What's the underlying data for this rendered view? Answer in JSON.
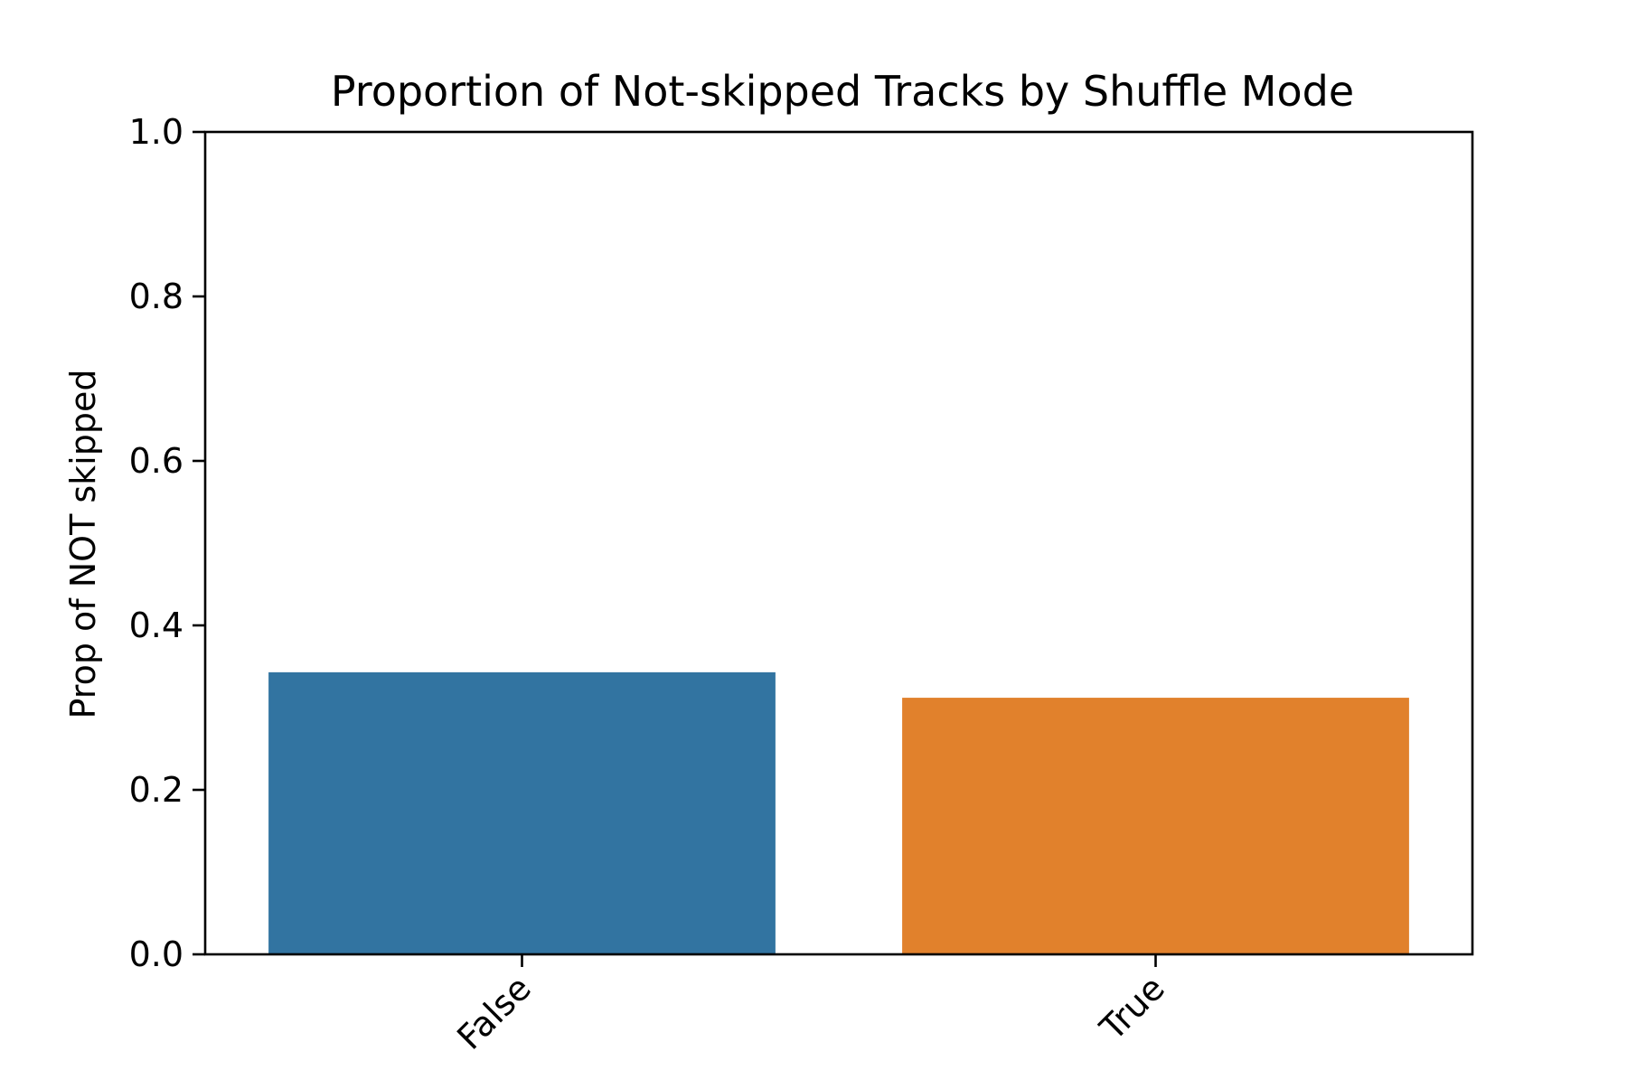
{
  "chart_data": {
    "type": "bar",
    "title": "Proportion of Not-skipped Tracks by Shuffle Mode",
    "xlabel": "",
    "ylabel": "Prop of NOT skipped",
    "categories": [
      "False",
      "True"
    ],
    "values": [
      0.343,
      0.312
    ],
    "colors": [
      "#3274a1",
      "#e1812c"
    ],
    "ylim": [
      0,
      1.0
    ],
    "yticks": [
      0.0,
      0.2,
      0.4,
      0.6,
      0.8,
      1.0
    ],
    "ytick_labels": [
      "0.0",
      "0.2",
      "0.4",
      "0.6",
      "0.8",
      "1.0"
    ],
    "grid": false,
    "legend": "none",
    "xtick_rotation_deg": 45
  }
}
